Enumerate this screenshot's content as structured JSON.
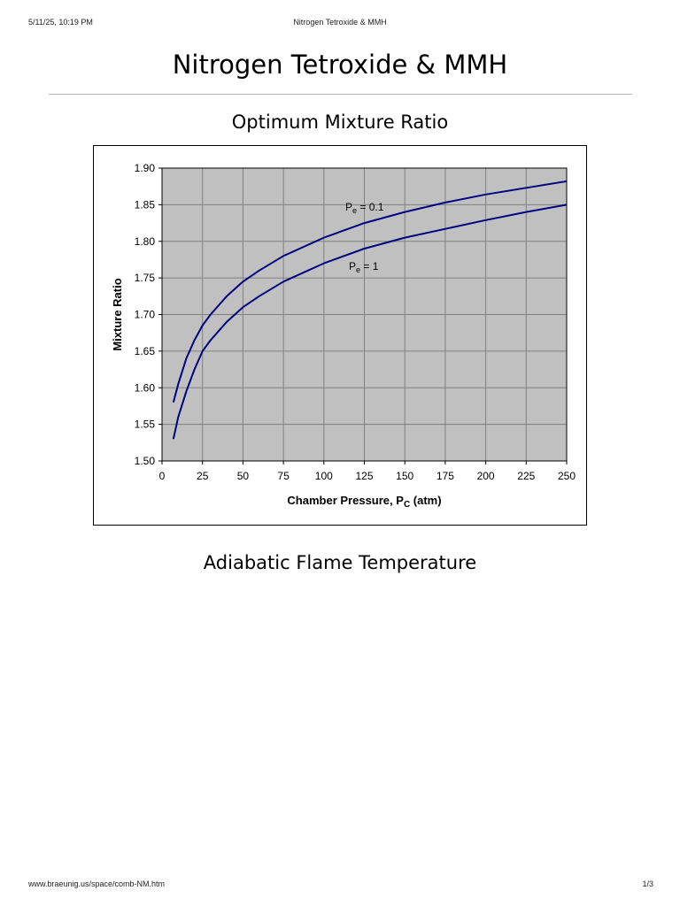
{
  "print_header": {
    "datetime": "5/11/25, 10:19 PM",
    "doc_title": "Nitrogen Tetroxide & MMH"
  },
  "page": {
    "title": "Nitrogen Tetroxide & MMH",
    "section_chart": "Optimum Mixture Ratio",
    "section_next": "Adiabatic Flame Temperature"
  },
  "print_footer": {
    "url": "www.braeunig.us/space/comb-NM.htm",
    "page_number": "1/3"
  },
  "colors": {
    "plot_background": "#c0c0c0",
    "grid": "#808080",
    "series_line": "#000080"
  },
  "chart_data": {
    "type": "line",
    "title": "",
    "xlabel": "Chamber Pressure, P",
    "xlabel_sub": "C",
    "xlabel_suffix": " (atm)",
    "ylabel": "Mixture Ratio",
    "xlim": [
      0,
      250
    ],
    "ylim": [
      1.5,
      1.9
    ],
    "x_ticks": [
      0,
      25,
      50,
      75,
      100,
      125,
      150,
      175,
      200,
      225,
      250
    ],
    "y_ticks": [
      "1.50",
      "1.55",
      "1.60",
      "1.65",
      "1.70",
      "1.75",
      "1.80",
      "1.85",
      "1.90"
    ],
    "grid": true,
    "legend": "none",
    "series": [
      {
        "label_main": "P",
        "label_sub": "e",
        "label_rest": " = 0.1",
        "x": [
          7,
          10,
          15,
          20,
          25,
          30,
          40,
          50,
          60,
          75,
          100,
          125,
          150,
          175,
          200,
          225,
          250
        ],
        "y": [
          1.58,
          1.605,
          1.64,
          1.665,
          1.685,
          1.7,
          1.725,
          1.745,
          1.76,
          1.78,
          1.805,
          1.825,
          1.84,
          1.853,
          1.864,
          1.873,
          1.882
        ]
      },
      {
        "label_main": "P",
        "label_sub": "e",
        "label_rest": " = 1",
        "x": [
          7,
          10,
          15,
          20,
          25,
          30,
          40,
          50,
          60,
          75,
          100,
          125,
          150,
          175,
          200,
          225,
          250
        ],
        "y": [
          1.53,
          1.56,
          1.595,
          1.625,
          1.65,
          1.665,
          1.69,
          1.71,
          1.725,
          1.745,
          1.77,
          1.79,
          1.805,
          1.817,
          1.829,
          1.84,
          1.85
        ]
      }
    ]
  }
}
